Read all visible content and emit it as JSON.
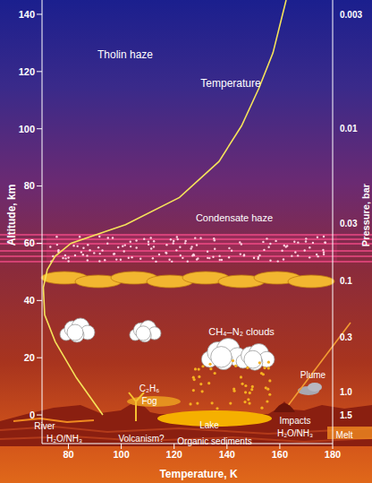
{
  "chart_data": {
    "type": "line",
    "x_label": "Temperature, K",
    "y_label": "Altitude, km",
    "pressure_label": "Pressure, bar",
    "xlim": [
      70,
      180
    ],
    "xticks": [
      80,
      100,
      120,
      140,
      160,
      180
    ],
    "ylim": [
      -10,
      145
    ],
    "yticks": [
      0,
      20,
      40,
      60,
      80,
      100,
      120,
      140
    ],
    "pressure_ticks": [
      {
        "altitude": 140,
        "pressure": 0.003,
        "label": "0.003"
      },
      {
        "altitude": 100,
        "pressure": 0.01,
        "label": "0.01"
      },
      {
        "altitude": 67,
        "pressure": 0.03,
        "label": "0.03"
      },
      {
        "altitude": 47,
        "pressure": 0.1,
        "label": "0.1"
      },
      {
        "altitude": 27,
        "pressure": 0.3,
        "label": "0.3"
      },
      {
        "altitude": 8,
        "pressure": 1,
        "label": "1.0"
      },
      {
        "altitude": 0,
        "pressure": 1.5,
        "label": "1.5"
      }
    ],
    "grid": false,
    "series": [
      {
        "name": "Temperature",
        "color": "#f5e35a",
        "x": [
          93,
          83,
          75,
          71,
          70.5,
          72,
          75,
          81,
          101.6,
          122,
          137,
          145.5,
          152,
          157.4,
          162.4
        ],
        "values": [
          0,
          13,
          25.6,
          35,
          44.5,
          50.8,
          55.5,
          60,
          66.5,
          76,
          88.6,
          101,
          114,
          126.5,
          145
        ]
      }
    ],
    "annotations": [
      "Tholin haze",
      "Condensate haze",
      "CH₄–N₂ clouds",
      "C₂H₆",
      "Fog",
      "Lake",
      "Plume",
      "River",
      "H₂O/NH₃",
      "Volcanism?",
      "Organic sediments",
      "Impacts",
      "H₂O/NH₃",
      "Melt"
    ]
  }
}
